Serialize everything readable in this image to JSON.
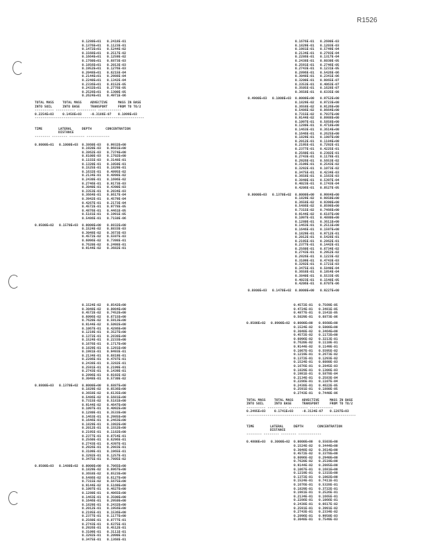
{
  "page_id": "R1526",
  "summary_headers": [
    "TOTAL MASS INTO SOIL",
    "TOTAL MASS INTO BASE",
    "ADVECTIVE TRANSPORT",
    "MASS IN BASE FROM TO TO/2"
  ],
  "table_headers": [
    "TIME",
    "LATERAL DISTANCE",
    "DEPTH",
    "CONCENTRATION"
  ],
  "sections": {
    "top_left_pre": {
      "rows": [
        [
          "0.1280E+01",
          "0.2418E-01"
        ],
        [
          "0.1376E+01",
          "0.1123E-01"
        ],
        [
          "0.1472E+01",
          "0.5244E-02"
        ],
        [
          "0.1568E+01",
          "0.2517E-02"
        ],
        [
          "0.1664E+01",
          "0.1259E-02"
        ],
        [
          "0.1760E+01",
          "0.6873E-03"
        ],
        [
          "0.1856E+01",
          "0.2013E-03"
        ],
        [
          "0.1952E+01",
          "0.1276E-03"
        ],
        [
          "0.2048E+01",
          "0.6215E-04"
        ],
        [
          "0.2144E+01",
          "0.2988E-04"
        ],
        [
          "0.2240E+01",
          "0.1342E-04"
        ],
        [
          "0.2336E+01",
          "0.8152E-05"
        ],
        [
          "0.2432E+01",
          "0.2776E-05"
        ],
        [
          "0.2528E+01",
          "0.1300E-05"
        ],
        [
          "0.2624E+01",
          "0.4971E-06"
        ]
      ]
    },
    "top_left_summary": [
      "0.2254E+03",
      "0.1458E+03",
      "-0.3186E-07",
      "0.1099E+03"
    ],
    "top_left_blocks": [
      {
        "time": "0.8000E+01",
        "dist": "0.1000E+03",
        "rows": [
          [
            "0.3860E-03",
            "0.9932E+00"
          ],
          [
            "0.1920E-03",
            "0.9681E+00"
          ],
          [
            "0.3862E-03",
            "0.7374E+00"
          ],
          [
            "0.8100E-03",
            "0.1702E+00"
          ],
          [
            "0.1155E-03",
            "0.3148E-01"
          ],
          [
            "0.1320E-01",
            "0.1050E-01"
          ],
          [
            "0.1525E-01",
            "0.1829E-01"
          ],
          [
            "0.1632E-01",
            "0.4895E-02"
          ],
          [
            "0.2134E-01",
            "0.4898E-02"
          ],
          [
            "0.2430E-01",
            "0.1696E-02"
          ],
          [
            "0.2746E-01",
            "0.9173E-03"
          ],
          [
            "0.3040E-01",
            "0.4390E-03"
          ],
          [
            "0.3353E-01",
            "0.2034E-03"
          ],
          [
            "0.3664E-01",
            "0.8617E-04"
          ],
          [
            "0.3942E-01",
            "0.4579E-04"
          ],
          [
            "0.4267E-01",
            "0.2173E-04"
          ],
          [
            "0.4572E-01",
            "0.9778E-05"
          ],
          [
            "0.4876E-01",
            "0.4461E-05"
          ],
          [
            "0.5181E-01",
            "0.1991E-05"
          ],
          [
            "0.5486E-01",
            "0.7150E-06"
          ]
        ]
      },
      {
        "time": "0.8500E+02",
        "dist": "0.1570E+03",
        "rows": [
          [
            "0.0000E+00",
            "0.8832E+00"
          ],
          [
            "0.1524E-02",
            "0.8833E-03"
          ],
          [
            "0.3048E-02",
            "0.3673E-03"
          ],
          [
            "0.4572E-02",
            "0.5597E-03"
          ],
          [
            "0.6096E-02",
            "0.7398E-01"
          ],
          [
            "0.7620E-02",
            "0.2498E-01"
          ],
          [
            "0.9144E-02",
            "0.3682E-01"
          ]
        ]
      }
    ],
    "top_right_pre": {
      "rows": [
        [
          "0.1676E-01",
          "0.2690E-03"
        ],
        [
          "0.1829E-01",
          "0.1203E-03"
        ],
        [
          "0.1981E-01",
          "0.5749E-04"
        ],
        [
          "0.2134E-01",
          "0.2793E-04"
        ],
        [
          "0.2286E-01",
          "0.1317E-04"
        ],
        [
          "0.2438E-01",
          "0.6030E-05"
        ],
        [
          "0.2591E-01",
          "0.2746E-05"
        ],
        [
          "0.2743E-01",
          "0.1231E-05"
        ],
        [
          "0.2896E-01",
          "0.5426E-06"
        ],
        [
          "0.3048E-01",
          "0.2341E-06"
        ],
        [
          "0.3200E-01",
          "0.9865E-07"
        ],
        [
          "0.3353E-01",
          "0.4063E-07"
        ],
        [
          "0.3505E-01",
          "0.1628E-07"
        ],
        [
          "0.3658E-01",
          "0.6335E-08"
        ]
      ]
    },
    "top_right_blocks": [
      {
        "time": "0.4900E+03",
        "dist": "0.1000E+03",
        "rows": [
          [
            "0.0000E+00",
            "0.9752E+00"
          ],
          [
            "0.1829E-02",
            "0.9723E+00"
          ],
          [
            "0.3658E-02",
            "0.9126E+00"
          ],
          [
            "0.5486E-02",
            "0.8664E+00"
          ],
          [
            "0.7315E-02",
            "0.7937E+00"
          ],
          [
            "0.9144E-02",
            "0.6988E+00"
          ],
          [
            "0.1097E-01",
            "0.5858E+00"
          ],
          [
            "0.1280E-01",
            "0.4718E+00"
          ],
          [
            "0.1463E-01",
            "0.3614E+00"
          ],
          [
            "0.1646E-01",
            "0.2625E+00"
          ],
          [
            "0.1829E-01",
            "0.1807E+00"
          ],
          [
            "0.2012E-01",
            "0.1184E+00"
          ],
          [
            "0.2195E-01",
            "0.7292E-01"
          ],
          [
            "0.2377E-01",
            "0.4225E-01"
          ],
          [
            "0.2560E-01",
            "0.2302E-01"
          ],
          [
            "0.2743E-01",
            "0.1178E-01"
          ],
          [
            "0.2926E-01",
            "0.5653E-02"
          ],
          [
            "0.3109E-01",
            "0.2543E-02"
          ],
          [
            "0.3292E-01",
            "0.1073E-02"
          ],
          [
            "0.3475E-01",
            "0.4234E-03"
          ],
          [
            "0.3658E-01",
            "0.1563E-03"
          ],
          [
            "0.3840E-01",
            "0.5397E-04"
          ],
          [
            "0.4023E-01",
            "0.1743E-04"
          ],
          [
            "0.4206E-01",
            "0.8527E-05"
          ]
        ]
      },
      {
        "time": "0.8000E+03",
        "dist": "0.1370E+02",
        "rows": [
          [
            "0.0000E+00",
            "0.9984E+00"
          ],
          [
            "0.1829E-02",
            "0.9850E+00"
          ],
          [
            "0.3658E-02",
            "0.9390E+00"
          ],
          [
            "0.5486E-02",
            "0.8598E+00"
          ],
          [
            "0.7315E-02",
            "0.7466E+00"
          ],
          [
            "0.9144E-02",
            "0.6187E+00"
          ],
          [
            "0.1097E-01",
            "0.4880E+00"
          ],
          [
            "0.1280E-01",
            "0.3611E+00"
          ],
          [
            "0.1463E-01",
            "0.2511E+00"
          ],
          [
            "0.1646E-01",
            "0.1597E+00"
          ],
          [
            "0.1829E-01",
            "0.9712E-01"
          ],
          [
            "0.2012E-01",
            "0.5428E-01"
          ],
          [
            "0.2195E-01",
            "0.2862E-01"
          ],
          [
            "0.2377E-01",
            "0.1442E-01"
          ],
          [
            "0.2560E-01",
            "0.6734E-02"
          ],
          [
            "0.2743E-01",
            "0.2952E-02"
          ],
          [
            "0.2926E-01",
            "0.1223E-02"
          ],
          [
            "0.3109E-01",
            "0.4743E-03"
          ],
          [
            "0.3292E-01",
            "0.1721E-03"
          ],
          [
            "0.3475E-01",
            "0.5840E-04"
          ],
          [
            "0.3658E-01",
            "0.1854E-04"
          ],
          [
            "0.3840E-01",
            "0.5533E-05"
          ],
          [
            "0.4023E-01",
            "0.1548E-05"
          ],
          [
            "0.4206E-01",
            "0.6707E-06"
          ]
        ]
      },
      {
        "time": "0.8800E+03",
        "dist": "0.1470E+02",
        "rows": [
          [
            "0.0000E+00",
            "0.9227E+00"
          ]
        ]
      }
    ],
    "bottom_left_pre": {
      "rows": [
        [
          "0.1524E-02",
          "0.8542E+00"
        ],
        [
          "0.3048E-02",
          "0.8084E+00"
        ],
        [
          "0.4572E-02",
          "0.7452E+00"
        ],
        [
          "0.6096E-02",
          "0.6715E+00"
        ],
        [
          "0.7620E-02",
          "0.5913E+00"
        ],
        [
          "0.9144E-02",
          "0.5092E+00"
        ],
        [
          "0.1067E-01",
          "0.4286E+00"
        ],
        [
          "0.1219E-01",
          "0.3527E+00"
        ],
        [
          "0.1372E-01",
          "0.2838E+00"
        ],
        [
          "0.1524E-01",
          "0.2233E+00"
        ],
        [
          "0.1676E-01",
          "0.1717E+00"
        ],
        [
          "0.1829E-01",
          "0.1291E+00"
        ],
        [
          "0.1981E-01",
          "0.9493E-01"
        ],
        [
          "0.2134E-01",
          "0.6819E-01"
        ],
        [
          "0.2286E-01",
          "0.4787E-01"
        ],
        [
          "0.2438E-01",
          "0.3282E-01"
        ],
        [
          "0.2591E-01",
          "0.2199E-01"
        ],
        [
          "0.2743E-01",
          "0.1439E-01"
        ],
        [
          "0.2896E-01",
          "0.9192E-02"
        ],
        [
          "0.3048E-01",
          "0.5730E-02"
        ]
      ]
    },
    "bottom_left_blocks": [
      {
        "time": "0.8800E+03",
        "dist": "0.1370E+02",
        "rows": [
          [
            "0.0000E+00",
            "0.6887E+00"
          ],
          [
            "0.1829E-02",
            "0.6536E+00"
          ],
          [
            "0.3658E-02",
            "0.6135E+00"
          ],
          [
            "0.5486E-02",
            "0.5681E+00"
          ],
          [
            "0.7315E-02",
            "0.5181E+00"
          ],
          [
            "0.9144E-02",
            "0.4647E+00"
          ],
          [
            "0.1097E-01",
            "0.4092E+00"
          ],
          [
            "0.1280E-01",
            "0.3533E+00"
          ],
          [
            "0.1463E-01",
            "0.2985E+00"
          ],
          [
            "0.1646E-01",
            "0.2463E+00"
          ],
          [
            "0.1829E-01",
            "0.1982E+00"
          ],
          [
            "0.2012E-01",
            "0.1552E+00"
          ],
          [
            "0.2195E-01",
            "0.1182E+00"
          ],
          [
            "0.2377E-01",
            "0.8754E-01"
          ],
          [
            "0.2560E-01",
            "0.6296E-01"
          ],
          [
            "0.2743E-01",
            "0.4397E-01"
          ],
          [
            "0.2926E-01",
            "0.2983E-01"
          ],
          [
            "0.3109E-01",
            "0.1965E-01"
          ],
          [
            "0.3292E-01",
            "0.1257E-01"
          ],
          [
            "0.3475E-01",
            "0.7805E-02"
          ]
        ]
      },
      {
        "time": "0.8500E+03",
        "dist": "0.1480E+02",
        "rows": [
          [
            "0.0000E+00",
            "0.7065E+00"
          ],
          [
            "0.1829E-02",
            "0.6967E+00"
          ],
          [
            "0.3658E-02",
            "0.6523E+00"
          ],
          [
            "0.5486E-02",
            "0.6127E+00"
          ],
          [
            "0.7315E-02",
            "0.5675E+00"
          ],
          [
            "0.9144E-02",
            "0.5169E+00"
          ],
          [
            "0.1097E-01",
            "0.4627E+00"
          ],
          [
            "0.1280E-01",
            "0.4065E+00"
          ],
          [
            "0.1463E-01",
            "0.3500E+00"
          ],
          [
            "0.1646E-01",
            "0.2950E+00"
          ],
          [
            "0.1829E-01",
            "0.2432E+00"
          ],
          [
            "0.2012E-01",
            "0.1956E+00"
          ],
          [
            "0.2195E-01",
            "0.1536E+00"
          ],
          [
            "0.2377E-01",
            "0.1177E+00"
          ],
          [
            "0.2560E-01",
            "0.8777E-01"
          ],
          [
            "0.2743E-01",
            "0.6375E-01"
          ],
          [
            "0.2926E-01",
            "0.4512E-01"
          ],
          [
            "0.3109E-01",
            "0.3111E-01"
          ],
          [
            "0.3292E-01",
            "0.2090E-01"
          ],
          [
            "0.3475E-01",
            "0.1368E-01"
          ]
        ]
      }
    ],
    "bottom_right_pre": {
      "rows": [
        [
          "0.4572E-01",
          "0.7569E-05"
        ],
        [
          "0.4724E-01",
          "0.3481E-05"
        ],
        [
          "0.4877E-01",
          "0.1541E-05"
        ],
        [
          "0.5029E-01",
          "0.6873E-06"
        ]
      ]
    },
    "bottom_right_blocks": [
      {
        "time": "0.8500E+02",
        "dist": "0.8900E+02",
        "rows": [
          [
            "0.0000E+00",
            "0.6660E+00"
          ],
          [
            "0.1524E-02",
            "0.5008E+00"
          ],
          [
            "0.3048E-02",
            "0.3464E+00"
          ],
          [
            "0.4572E-02",
            "0.1172E+00"
          ],
          [
            "0.6096E-02",
            "0.3213E-01"
          ],
          [
            "0.7620E-02",
            "0.1110E-01"
          ],
          [
            "0.9144E-02",
            "0.1149E-01"
          ],
          [
            "0.1067E-01",
            "0.5595E-02"
          ],
          [
            "0.1219E-01",
            "0.2673E-02"
          ],
          [
            "0.1372E-01",
            "0.1293E-02"
          ],
          [
            "0.1524E-01",
            "0.6080E-03"
          ],
          [
            "0.1676E-01",
            "0.2845E-03"
          ],
          [
            "0.1829E-01",
            "0.1308E-03"
          ],
          [
            "0.1981E-01",
            "0.5878E-04"
          ],
          [
            "0.2134E-01",
            "0.2583E-04"
          ],
          [
            "0.2286E-01",
            "0.1107E-04"
          ],
          [
            "0.2438E-01",
            "0.4622E-05"
          ],
          [
            "0.2591E-01",
            "0.1880E-05"
          ],
          [
            "0.2743E-01",
            "0.7440E-06"
          ]
        ]
      },
      {
        "time": "0.4800E+03",
        "dist": "0.3000E+02",
        "rows": [
          [
            "0.0000E+00",
            "0.5503E+00"
          ],
          [
            "0.1524E-02",
            "0.3444E+00"
          ],
          [
            "0.3048E-02",
            "0.3614E+00"
          ],
          [
            "0.4572E-02",
            "0.3378E+00"
          ],
          [
            "0.6096E-02",
            "0.2940E+00"
          ],
          [
            "0.7620E-02",
            "0.2519E+00"
          ],
          [
            "0.9144E-02",
            "0.2085E+00"
          ],
          [
            "0.1067E-01",
            "0.1681E+00"
          ],
          [
            "0.1219E-01",
            "0.1315E+00"
          ],
          [
            "0.1372E-01",
            "0.1002E+00"
          ],
          [
            "0.1524E-01",
            "0.7411E-01"
          ],
          [
            "0.1676E-01",
            "0.5328E-01"
          ],
          [
            "0.1829E-01",
            "0.3722E-01"
          ],
          [
            "0.1981E-01",
            "0.2526E-01"
          ],
          [
            "0.2134E-01",
            "0.1665E-01"
          ],
          [
            "0.2286E-01",
            "0.1066E-01"
          ],
          [
            "0.2438E-01",
            "0.6617E-02"
          ],
          [
            "0.2591E-01",
            "0.3991E-02"
          ],
          [
            "0.2743E-01",
            "0.2334E-02"
          ],
          [
            "0.2896E-01",
            "0.9950E-03"
          ],
          [
            "0.3048E-01",
            "0.7549E-03"
          ]
        ]
      }
    ],
    "bottom_right_summary": [
      "0.2495E+03",
      "0.1741E+03",
      "-0.3134E-07",
      "0.1287E+03"
    ]
  }
}
